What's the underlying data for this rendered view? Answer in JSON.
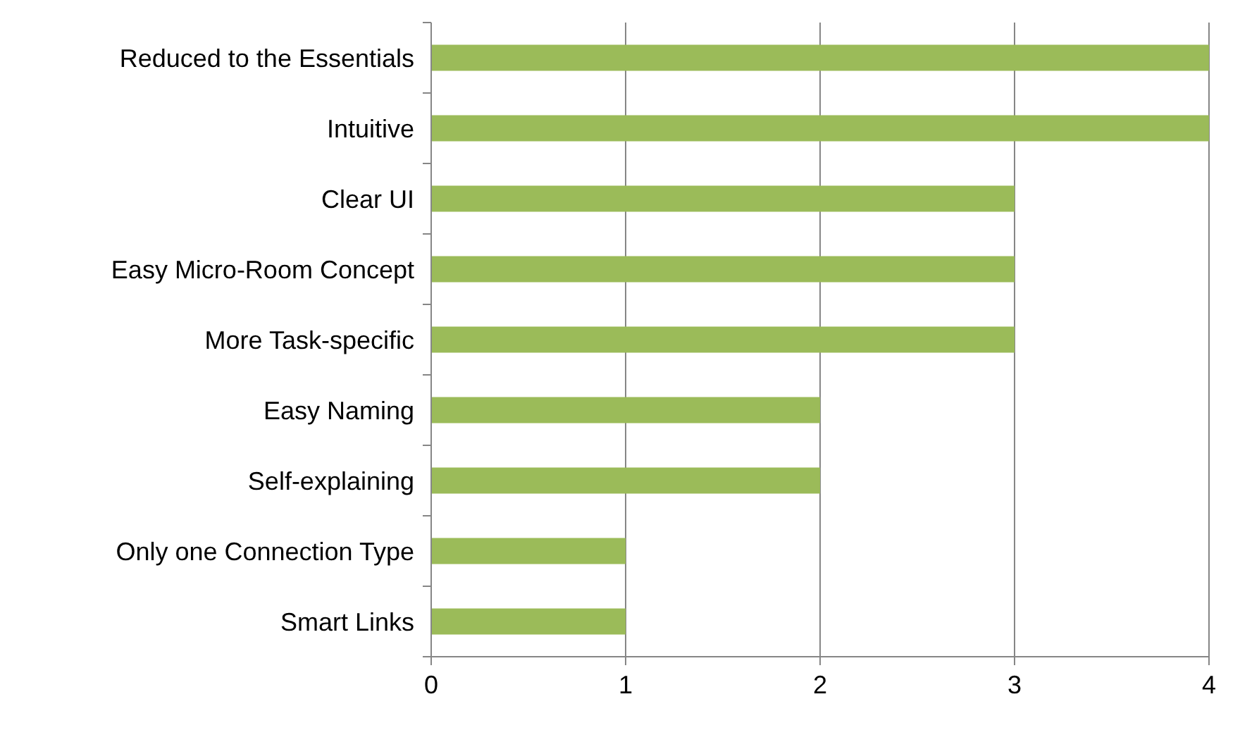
{
  "chart_data": {
    "type": "bar",
    "orientation": "horizontal",
    "categories": [
      "Reduced to the Essentials",
      "Intuitive",
      "Clear UI",
      "Easy Micro-Room Concept",
      "More Task-specific",
      "Easy Naming",
      "Self-explaining",
      "Only one Connection Type",
      "Smart Links"
    ],
    "values": [
      4,
      4,
      3,
      3,
      3,
      2,
      2,
      1,
      1
    ],
    "color": "#9bbb59",
    "xlim": [
      0,
      4
    ],
    "xticks": [
      0,
      1,
      2,
      3,
      4
    ],
    "grid": "x"
  }
}
